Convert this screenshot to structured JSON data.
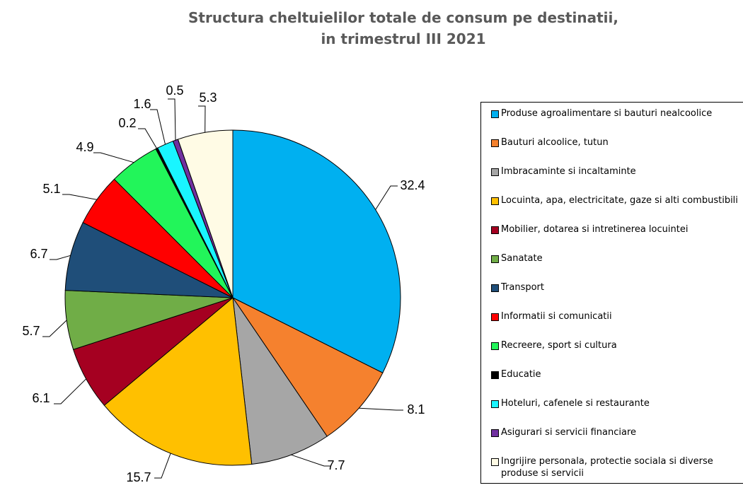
{
  "chart_data": {
    "type": "pie",
    "title": [
      "Structura cheltuielilor totale de consum pe destinatii,",
      "in trimestrul III 2021"
    ],
    "categories": [
      "Produse agroalimentare si bauturi nealcoolice",
      "Bauturi alcoolice, tutun",
      "Imbracaminte si incaltaminte",
      "Locuinta, apa, electricitate, gaze si alti combustibili",
      "Mobilier, dotarea si intretinerea locuintei",
      "Sanatate",
      "Transport",
      "Informatii si comunicatii",
      "Recreere, sport si cultura",
      "Educatie",
      "Hoteluri, cafenele si restaurante",
      "Asigurari si servicii financiare",
      "Ingrijire personala, protectie sociala si diverse produse si servicii"
    ],
    "values": [
      32.4,
      8.1,
      7.7,
      15.7,
      6.1,
      5.7,
      6.7,
      5.1,
      4.9,
      0.2,
      1.6,
      0.5,
      5.3
    ],
    "value_labels": [
      "32.4",
      "8.1",
      "7.7",
      "15.7",
      "6.1",
      "5.7",
      "6.7",
      "5.1",
      "4.9",
      "0.2",
      "1.6",
      "0.5",
      "5.3"
    ],
    "colors": [
      "#00B0F0",
      "#F5812E",
      "#A6A6A6",
      "#FFC000",
      "#A50021",
      "#70AD47",
      "#1F4E79",
      "#FF0000",
      "#22F55A",
      "#000000",
      "#19F5FF",
      "#7030A0",
      "#FFFBE5"
    ],
    "start_angle": "12 o'clock",
    "direction": "clockwise",
    "legend_position": "right"
  }
}
